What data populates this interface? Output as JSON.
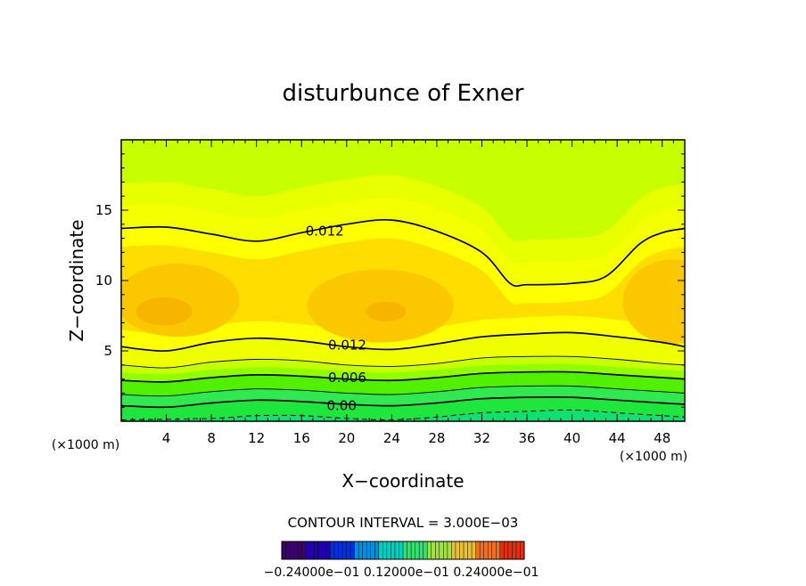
{
  "chart_data": {
    "type": "contour",
    "title": "disturbunce of Exner",
    "xlabel": "X−coordinate",
    "ylabel": "Z−coordinate",
    "xlim": [
      0,
      50
    ],
    "ylim": [
      0,
      20
    ],
    "x_ticks": [
      "4",
      "8",
      "12",
      "16",
      "20",
      "24",
      "28",
      "32",
      "36",
      "40",
      "44",
      "48"
    ],
    "x_tick_values": [
      4,
      8,
      12,
      16,
      20,
      24,
      28,
      32,
      36,
      40,
      44,
      48
    ],
    "y_ticks": [
      "5",
      "10",
      "15"
    ],
    "y_tick_values": [
      5,
      10,
      15
    ],
    "x_unit_label": "(×1000 m)",
    "y_unit_label": "(×1000 m)",
    "contour_interval_text": "CONTOUR INTERVAL = 3.000E−03",
    "colorbar_labels_text": "−0.24000e−01  0.12000e−01  0.24000e−01",
    "contours": [
      {
        "level": 0.012,
        "label": "0.012",
        "style": "solid-thick",
        "label_at": [
          16,
          13.5
        ],
        "points": [
          [
            0,
            13.7
          ],
          [
            4,
            13.8
          ],
          [
            8,
            13.3
          ],
          [
            12,
            12.8
          ],
          [
            16,
            13.4
          ],
          [
            20,
            14.0
          ],
          [
            24,
            14.3
          ],
          [
            28,
            13.5
          ],
          [
            32,
            12.0
          ],
          [
            34.5,
            9.8
          ],
          [
            36,
            9.7
          ],
          [
            40,
            9.8
          ],
          [
            43,
            10.3
          ],
          [
            46,
            12.6
          ],
          [
            48,
            13.4
          ],
          [
            50,
            13.7
          ]
        ]
      },
      {
        "level": 0.012,
        "label": "0.012",
        "style": "solid-thick",
        "label_at": [
          18,
          5.4
        ],
        "points": [
          [
            0,
            5.3
          ],
          [
            4,
            5.0
          ],
          [
            8,
            5.6
          ],
          [
            12,
            5.9
          ],
          [
            16,
            5.7
          ],
          [
            20,
            5.3
          ],
          [
            24,
            5.1
          ],
          [
            28,
            5.5
          ],
          [
            32,
            6.0
          ],
          [
            36,
            6.2
          ],
          [
            40,
            6.3
          ],
          [
            44,
            6.0
          ],
          [
            48,
            5.6
          ],
          [
            50,
            5.3
          ]
        ]
      },
      {
        "level": 0.009,
        "style": "solid-thin",
        "points": [
          [
            0,
            4.0
          ],
          [
            4,
            3.8
          ],
          [
            8,
            4.2
          ],
          [
            12,
            4.4
          ],
          [
            16,
            4.3
          ],
          [
            20,
            4.0
          ],
          [
            24,
            3.9
          ],
          [
            28,
            4.1
          ],
          [
            32,
            4.5
          ],
          [
            36,
            4.6
          ],
          [
            40,
            4.6
          ],
          [
            44,
            4.4
          ],
          [
            48,
            4.1
          ],
          [
            50,
            4.0
          ]
        ]
      },
      {
        "level": 0.006,
        "label": "0.006",
        "style": "solid-thick",
        "label_at": [
          18,
          3.1
        ],
        "points": [
          [
            0,
            2.9
          ],
          [
            4,
            2.8
          ],
          [
            8,
            3.1
          ],
          [
            12,
            3.3
          ],
          [
            16,
            3.2
          ],
          [
            20,
            3.0
          ],
          [
            24,
            2.9
          ],
          [
            28,
            3.1
          ],
          [
            32,
            3.4
          ],
          [
            36,
            3.5
          ],
          [
            40,
            3.5
          ],
          [
            44,
            3.3
          ],
          [
            48,
            3.1
          ],
          [
            50,
            3.0
          ]
        ]
      },
      {
        "level": 0.003,
        "style": "solid-thin",
        "points": [
          [
            0,
            1.9
          ],
          [
            4,
            1.8
          ],
          [
            8,
            2.1
          ],
          [
            12,
            2.3
          ],
          [
            16,
            2.2
          ],
          [
            20,
            2.0
          ],
          [
            24,
            1.9
          ],
          [
            28,
            2.1
          ],
          [
            32,
            2.4
          ],
          [
            36,
            2.5
          ],
          [
            40,
            2.5
          ],
          [
            44,
            2.3
          ],
          [
            48,
            2.1
          ],
          [
            50,
            2.0
          ]
        ]
      },
      {
        "level": 0.0,
        "label": "0.00",
        "style": "solid-thick",
        "label_at": [
          17.5,
          1.1
        ],
        "points": [
          [
            0,
            1.1
          ],
          [
            4,
            1.0
          ],
          [
            8,
            1.3
          ],
          [
            12,
            1.5
          ],
          [
            16,
            1.4
          ],
          [
            20,
            1.2
          ],
          [
            24,
            1.1
          ],
          [
            28,
            1.3
          ],
          [
            32,
            1.6
          ],
          [
            36,
            1.7
          ],
          [
            40,
            1.7
          ],
          [
            44,
            1.5
          ],
          [
            48,
            1.3
          ],
          [
            50,
            1.2
          ]
        ]
      },
      {
        "level": -0.003,
        "style": "dashed",
        "points": [
          [
            0,
            0.1
          ],
          [
            8,
            0.2
          ],
          [
            12,
            0.4
          ],
          [
            16,
            0.4
          ],
          [
            20,
            0.2
          ],
          [
            24,
            0.1
          ],
          [
            28,
            0.3
          ],
          [
            32,
            0.6
          ],
          [
            36,
            0.7
          ],
          [
            40,
            0.8
          ],
          [
            44,
            0.6
          ],
          [
            48,
            0.4
          ],
          [
            50,
            0.3
          ]
        ]
      }
    ],
    "colors": {
      "max_orange": "#f7b500",
      "orange": "#fbc800",
      "yellow_orange": "#ffdd00",
      "yellow": "#ffff00",
      "yellow_green": "#e8ff00",
      "lime": "#c8ff00",
      "green_light": "#90ff00",
      "green": "#50f000",
      "green_deep": "#1ee63c",
      "spring": "#10e070"
    },
    "colorbar_colors": [
      "#3c0070",
      "#2000b0",
      "#0030e0",
      "#0090e0",
      "#00d0c0",
      "#30e070",
      "#a0e040",
      "#e8c030",
      "#f07020",
      "#e03010"
    ]
  }
}
